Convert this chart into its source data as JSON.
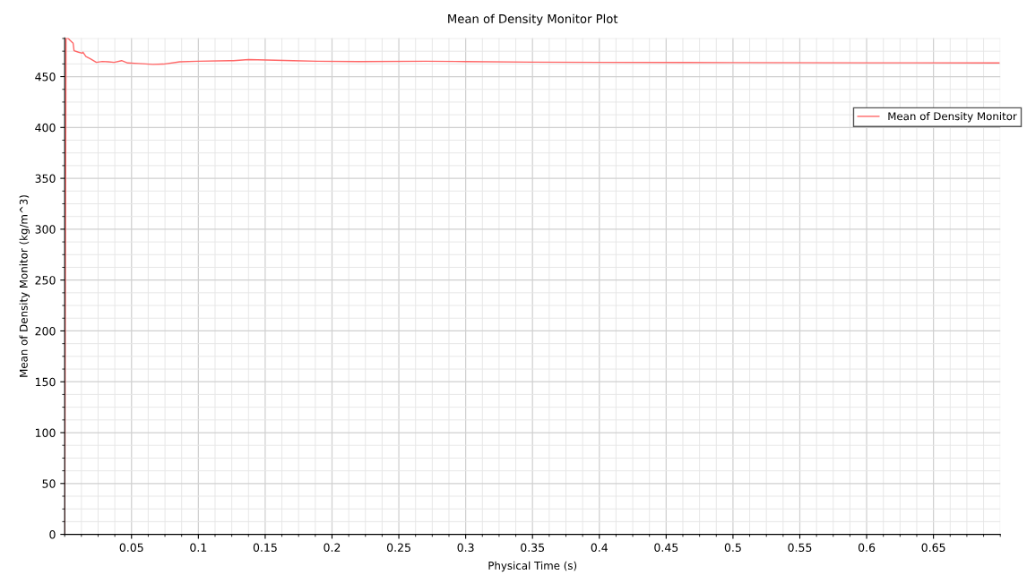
{
  "chart_data": {
    "type": "line",
    "title": "Mean of Density Monitor Plot",
    "xlabel": "Physical Time (s)",
    "ylabel": "Mean of Density Monitor (kg/m^3)",
    "x": [
      0,
      0.001,
      0.0025,
      0.004,
      0.0063,
      0.007,
      0.0103,
      0.013,
      0.0137,
      0.0159,
      0.0192,
      0.0237,
      0.0281,
      0.0326,
      0.037,
      0.0426,
      0.0471,
      0.0549,
      0.066,
      0.0739,
      0.0861,
      0.0995,
      0.1263,
      0.1375,
      0.151,
      0.171,
      0.189,
      0.22,
      0.27,
      0.3,
      0.35,
      0.4,
      0.5,
      0.6,
      0.699
    ],
    "series": [
      {
        "name": "Mean of Density Monitor",
        "color": "#ff6666",
        "values": [
          0,
          488,
          487.7,
          485.7,
          482.8,
          475.5,
          474,
          473,
          474,
          469.8,
          467.5,
          464,
          464.9,
          464.6,
          464,
          465.7,
          463.4,
          462.9,
          462,
          462.3,
          464.6,
          465.1,
          465.7,
          466.8,
          466.3,
          465.7,
          465.1,
          464.8,
          465.1,
          464.8,
          464.2,
          464.0,
          463.8,
          463.6,
          463.4
        ]
      }
    ],
    "xlim": [
      0,
      0.7
    ],
    "ylim": [
      0,
      488
    ],
    "xticks": [
      0.05,
      0.1,
      0.15,
      0.2,
      0.25,
      0.3,
      0.35,
      0.4,
      0.45,
      0.5,
      0.55,
      0.6,
      0.65
    ],
    "yticks": [
      0,
      50,
      100,
      150,
      200,
      250,
      300,
      350,
      400,
      450
    ],
    "grid": true,
    "legend": "top right",
    "marker": "none",
    "line_style": "solid"
  }
}
